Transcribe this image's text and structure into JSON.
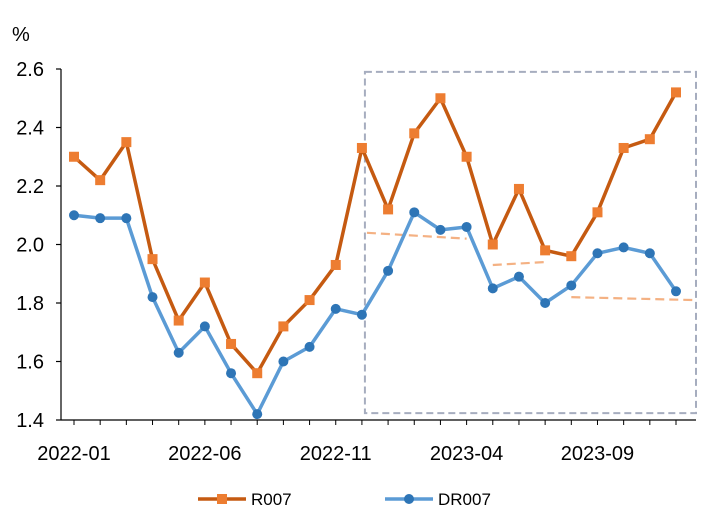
{
  "chart_data": {
    "type": "line",
    "unit_label": "%",
    "x": [
      "2022-01",
      "2022-02",
      "2022-03",
      "2022-04",
      "2022-05",
      "2022-06",
      "2022-07",
      "2022-08",
      "2022-09",
      "2022-10",
      "2022-11",
      "2022-12",
      "2023-01",
      "2023-02",
      "2023-03",
      "2023-04",
      "2023-05",
      "2023-06",
      "2023-07",
      "2023-08",
      "2023-09",
      "2023-10",
      "2023-11",
      "2023-12"
    ],
    "x_tick_labels": [
      "2022-01",
      "2022-06",
      "2022-11",
      "2023-04",
      "2023-09"
    ],
    "y_ticks": [
      "1.4",
      "1.6",
      "1.8",
      "2.0",
      "2.2",
      "2.4",
      "2.6"
    ],
    "ylim": [
      1.4,
      2.6
    ],
    "grid": false,
    "legend_position": "bottom",
    "series": [
      {
        "name": "R007",
        "color": "#c55a11",
        "marker": "square",
        "marker_color": "#ed7d31",
        "values": [
          2.3,
          2.22,
          2.35,
          1.95,
          1.74,
          1.87,
          1.66,
          1.56,
          1.72,
          1.81,
          1.93,
          2.33,
          2.12,
          2.38,
          2.5,
          2.3,
          2.0,
          2.19,
          1.98,
          1.96,
          2.11,
          2.33,
          2.36,
          2.52
        ]
      },
      {
        "name": "DR007",
        "color": "#5b9bd5",
        "marker": "circle",
        "marker_color": "#2e75b6",
        "values": [
          2.1,
          2.09,
          2.09,
          1.82,
          1.63,
          1.72,
          1.56,
          1.42,
          1.6,
          1.65,
          1.78,
          1.76,
          1.91,
          2.11,
          2.05,
          2.06,
          1.85,
          1.89,
          1.8,
          1.86,
          1.97,
          1.99,
          1.97,
          1.84
        ]
      }
    ],
    "annotations": {
      "highlight_box": {
        "x_from": "2022-12",
        "x_to": "2023-12",
        "y_from": 1.42,
        "y_to": 2.59,
        "color": "#a6adbf",
        "style": "dashed"
      },
      "trend_lines": [
        {
          "x_from": "2022-12",
          "x_to": "2023-04",
          "y_from": 2.04,
          "y_to": 2.02,
          "color": "#f4b183"
        },
        {
          "x_from": "2023-05",
          "x_to": "2023-07",
          "y_from": 1.93,
          "y_to": 1.94,
          "color": "#f4b183"
        },
        {
          "x_from": "2023-08",
          "x_to": "2023-12",
          "y_from": 1.82,
          "y_to": 1.81,
          "color": "#f4b183"
        }
      ]
    }
  }
}
